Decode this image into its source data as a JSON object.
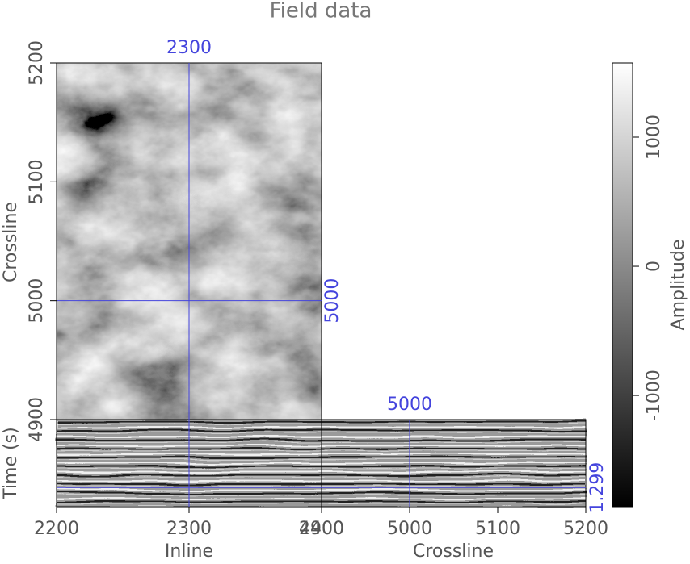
{
  "chart_data": {
    "type": "cube",
    "title": "Field data",
    "xlabel": "Inline",
    "ylabel": "Crossline",
    "tlabel": "Time (s)",
    "x2label": "Crossline",
    "clabel": "Amplitude",
    "xlim": [
      2200,
      2400
    ],
    "xticks": [
      2200,
      2300,
      2400
    ],
    "ylim": [
      4900,
      5200
    ],
    "yticks": [
      4900,
      5000,
      5100,
      5200
    ],
    "tlim": [
      1.2,
      1.327
    ],
    "slices": {
      "inline": 2300,
      "crossline": 5000,
      "time": 1.299
    },
    "clim": [
      -1862,
      1575
    ],
    "cticks": [
      -1000,
      0,
      1000
    ],
    "colormap": [
      "#000000",
      "#ffffff"
    ],
    "slice_color": "#4444dd"
  }
}
